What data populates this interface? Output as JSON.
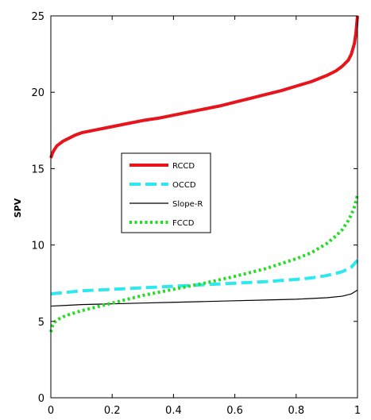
{
  "chart_data": {
    "type": "line",
    "title": "",
    "xlabel": "",
    "ylabel": "SPV",
    "xlim": [
      0,
      1
    ],
    "ylim": [
      0,
      25
    ],
    "x_ticks": [
      0,
      0.2,
      0.4,
      0.6,
      0.8,
      1
    ],
    "x_tick_labels": [
      "0",
      "0.2",
      "0.4",
      "0.6",
      "0.8",
      "1"
    ],
    "y_ticks": [
      0,
      5,
      10,
      15,
      20,
      25
    ],
    "y_tick_labels": [
      "0",
      "5",
      "10",
      "15",
      "20",
      "25"
    ],
    "grid": false,
    "legend_position": "center-left",
    "series": [
      {
        "name": "RCCD",
        "color": "#e8141c",
        "line_style": "solid",
        "line_weight": "thick",
        "x": [
          0,
          0.005,
          0.01,
          0.02,
          0.04,
          0.06,
          0.08,
          0.1,
          0.15,
          0.2,
          0.25,
          0.3,
          0.35,
          0.4,
          0.45,
          0.5,
          0.55,
          0.6,
          0.65,
          0.7,
          0.75,
          0.8,
          0.85,
          0.9,
          0.93,
          0.95,
          0.97,
          0.98,
          0.99,
          0.995,
          1.0
        ],
        "values": [
          15.7,
          16.0,
          16.2,
          16.5,
          16.8,
          17.0,
          17.2,
          17.35,
          17.55,
          17.75,
          17.95,
          18.15,
          18.3,
          18.5,
          18.7,
          18.9,
          19.1,
          19.35,
          19.6,
          19.85,
          20.1,
          20.4,
          20.7,
          21.1,
          21.4,
          21.7,
          22.1,
          22.5,
          23.2,
          23.9,
          25.0
        ]
      },
      {
        "name": "OCCD",
        "color": "#2ee8f0",
        "line_style": "dashed",
        "line_weight": "thick",
        "x": [
          0,
          0.05,
          0.1,
          0.2,
          0.3,
          0.4,
          0.5,
          0.6,
          0.7,
          0.8,
          0.85,
          0.9,
          0.95,
          0.98,
          1.0
        ],
        "values": [
          6.8,
          6.9,
          7.0,
          7.1,
          7.2,
          7.3,
          7.4,
          7.5,
          7.6,
          7.75,
          7.85,
          8.0,
          8.25,
          8.55,
          9.0
        ]
      },
      {
        "name": "Slope-R",
        "color": "#000000",
        "line_style": "solid",
        "line_weight": "thin",
        "x": [
          0,
          0.05,
          0.1,
          0.2,
          0.3,
          0.4,
          0.5,
          0.6,
          0.7,
          0.8,
          0.9,
          0.95,
          0.98,
          1.0
        ],
        "values": [
          6.0,
          6.05,
          6.1,
          6.15,
          6.2,
          6.25,
          6.3,
          6.35,
          6.4,
          6.45,
          6.55,
          6.65,
          6.8,
          7.05
        ]
      },
      {
        "name": "FCCD",
        "color": "#22dd22",
        "line_style": "dotted",
        "line_weight": "thick",
        "x": [
          0,
          0.005,
          0.01,
          0.02,
          0.04,
          0.06,
          0.1,
          0.15,
          0.2,
          0.3,
          0.4,
          0.5,
          0.6,
          0.7,
          0.8,
          0.85,
          0.9,
          0.93,
          0.95,
          0.97,
          0.98,
          0.99,
          1.0
        ],
        "values": [
          4.3,
          4.7,
          4.9,
          5.1,
          5.3,
          5.45,
          5.7,
          5.95,
          6.2,
          6.7,
          7.1,
          7.5,
          7.95,
          8.45,
          9.1,
          9.5,
          10.1,
          10.6,
          11.0,
          11.6,
          12.0,
          12.5,
          13.3
        ]
      }
    ]
  }
}
